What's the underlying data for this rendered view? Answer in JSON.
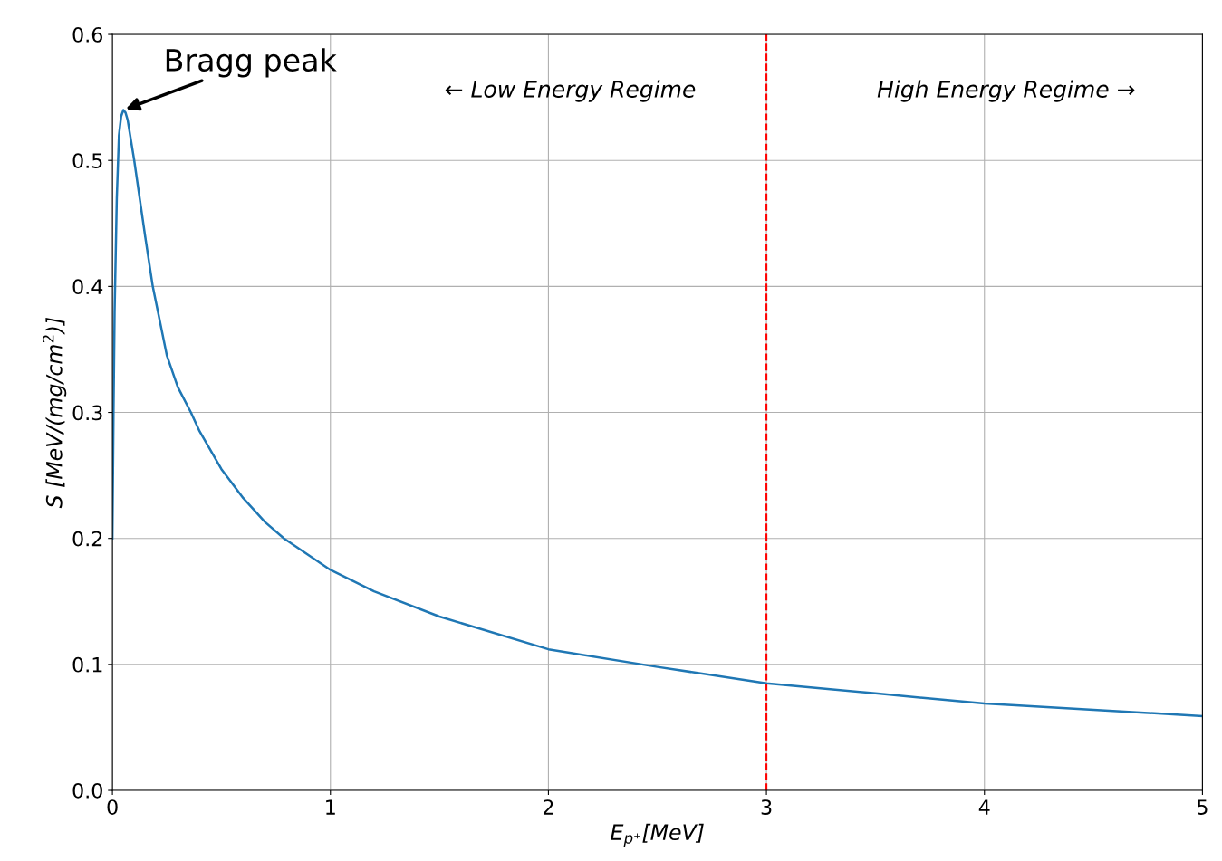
{
  "chart_data": {
    "type": "line",
    "xlabel": "E$_{p⁺}$[MeV]",
    "ylabel": "S [MeV/(mg/cm$^{2}$)]",
    "x": [
      0,
      0.005,
      0.01,
      0.02,
      0.03,
      0.04,
      0.05,
      0.06,
      0.07,
      0.1,
      0.15,
      0.185,
      0.25,
      0.3,
      0.36,
      0.4,
      0.5,
      0.6,
      0.7,
      0.787,
      1.0,
      1.2,
      1.5,
      2.0,
      2.5,
      3.0,
      3.5,
      4.0,
      4.5,
      5.0
    ],
    "series": [
      {
        "color": "#1f77b4",
        "values": [
          0.2,
          0.3,
          0.38,
          0.47,
          0.52,
          0.535,
          0.54,
          0.538,
          0.532,
          0.5,
          0.44,
          0.4,
          0.345,
          0.32,
          0.3,
          0.285,
          0.255,
          0.232,
          0.213,
          0.2,
          0.175,
          0.158,
          0.138,
          0.112,
          0.098,
          0.085,
          0.077,
          0.069,
          0.064,
          0.059
        ]
      }
    ],
    "xlim": [
      0,
      5
    ],
    "ylim": [
      0,
      0.6
    ],
    "xticks": [
      0,
      1,
      2,
      3,
      4,
      5
    ],
    "yticks": [
      {
        "value": 0,
        "label": "0.0"
      },
      0.1,
      0.2,
      0.3,
      0.4,
      0.5,
      0.6
    ],
    "grid": true,
    "legend": false,
    "marker": "none",
    "line_style": "solid",
    "ref_lines": [
      {
        "axis": "x",
        "value": 3,
        "color": "#ff0000",
        "line_style": "dashed"
      }
    ],
    "annotations": [
      {
        "text": "Bragg peak",
        "x": 0.05,
        "y": 0.54
      },
      "← Low Energy Regime",
      "High Energy Regime →"
    ]
  }
}
